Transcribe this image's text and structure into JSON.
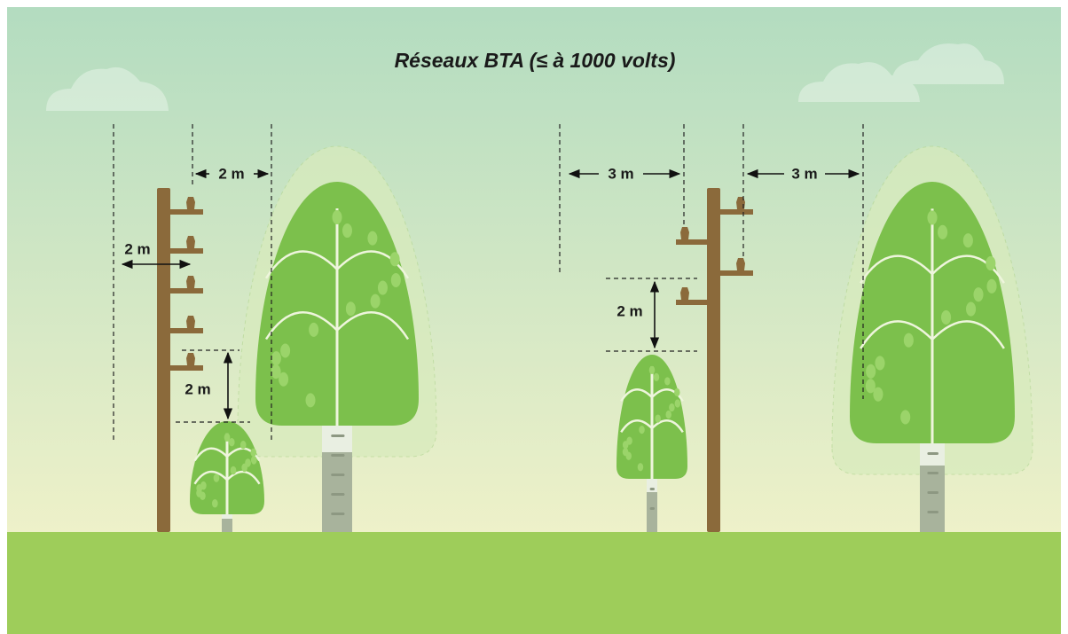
{
  "title": "Réseaux BTA (≤ à 1000 volts)",
  "left": {
    "labels": [
      "2 m",
      "2 m",
      "2 m"
    ]
  },
  "right": {
    "labels": [
      "3 m",
      "3 m",
      "2 m"
    ]
  }
}
